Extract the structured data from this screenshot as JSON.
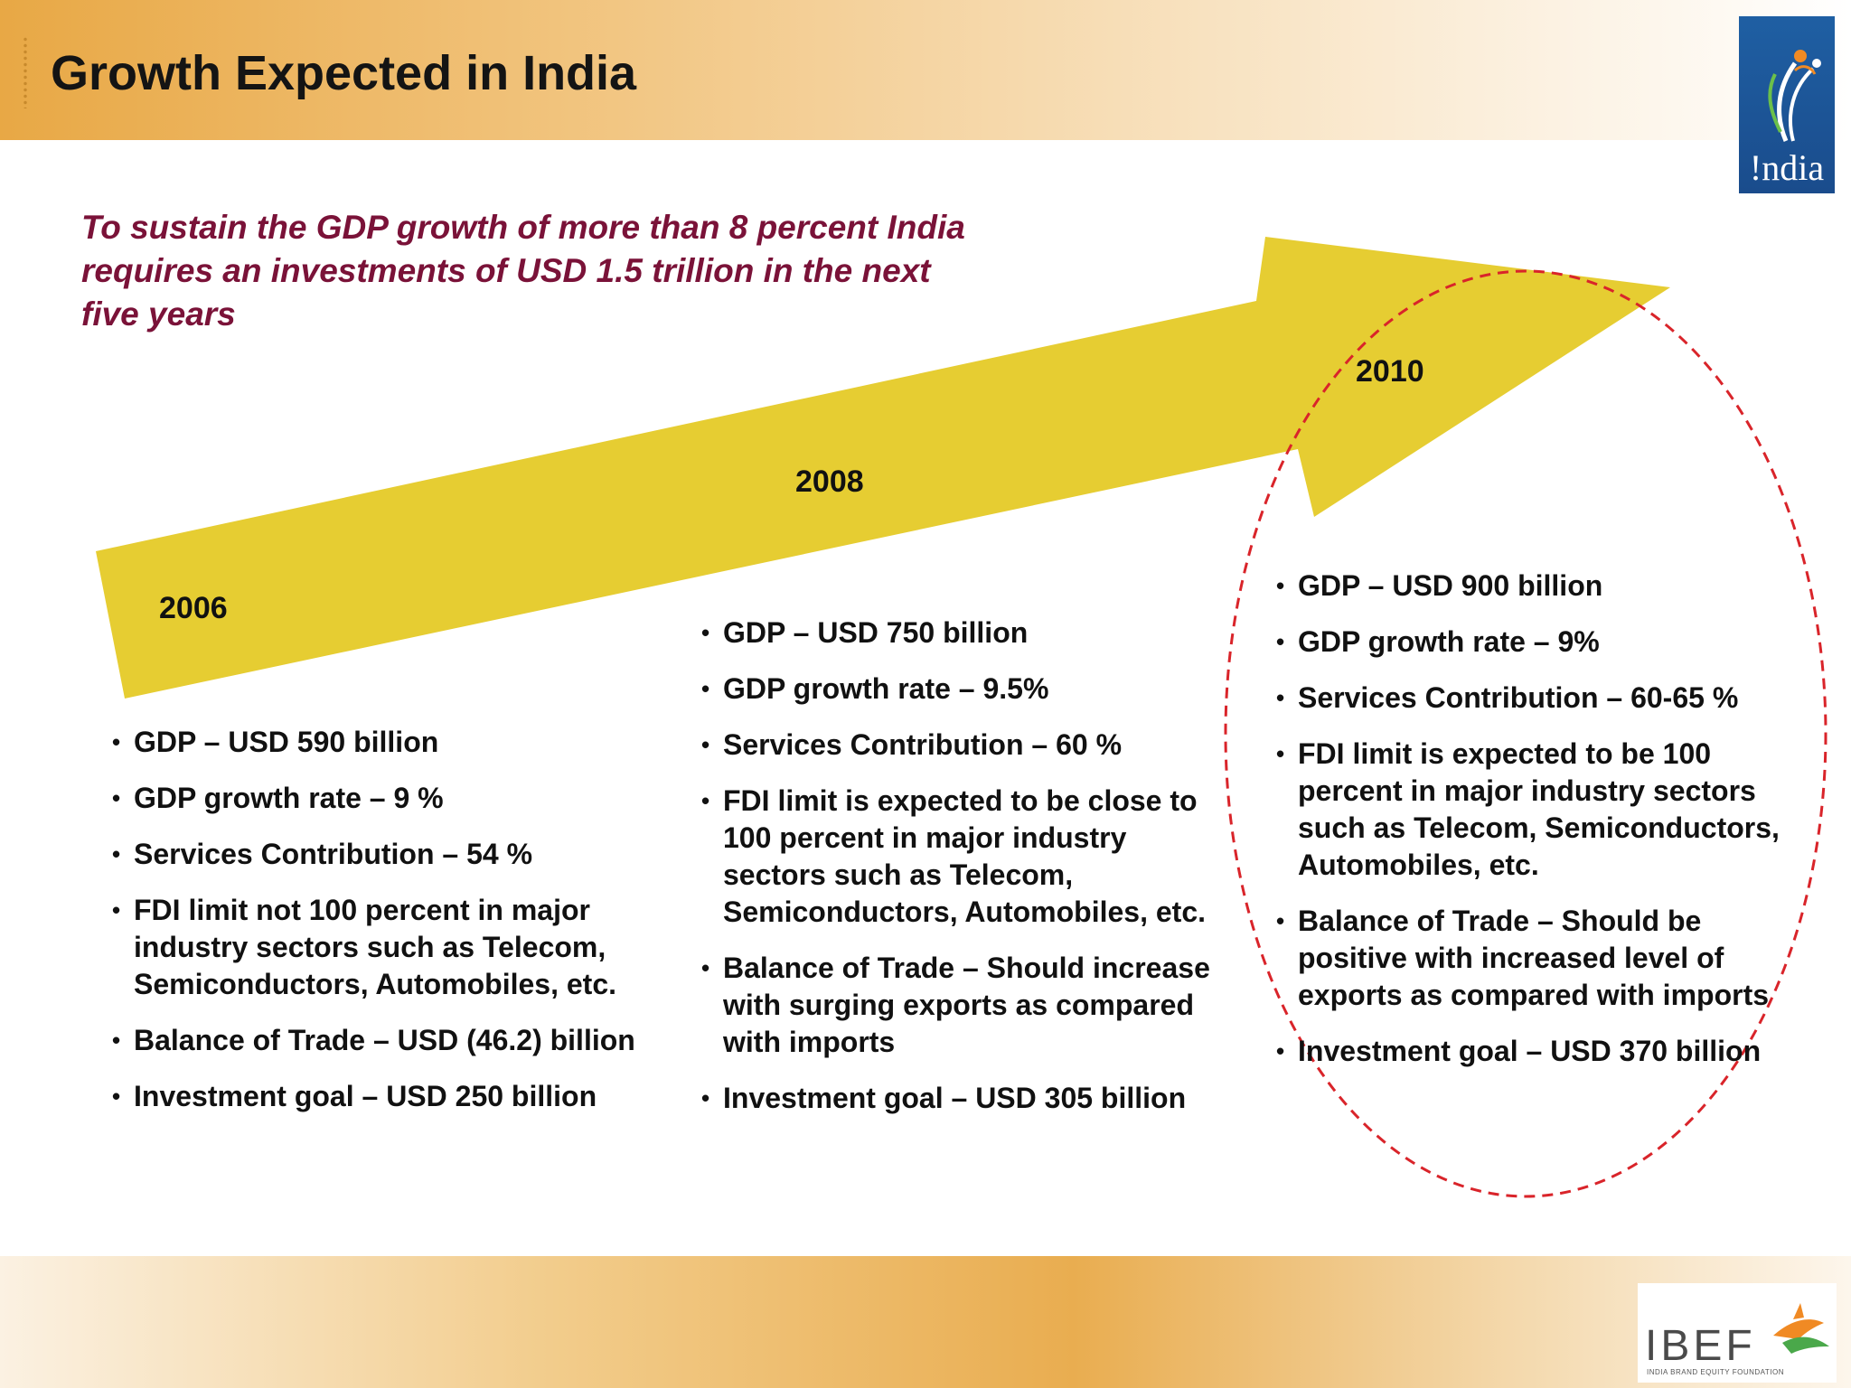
{
  "header": {
    "title": "Growth Expected in India"
  },
  "india_logo": {
    "text": "!ndia"
  },
  "subtitle": "To sustain the GDP growth of more than 8 percent India requires an investments of USD 1.5 trillion in the next five years",
  "columns": [
    {
      "year": "2006",
      "items": [
        "GDP – USD 590 billion",
        "GDP growth rate – 9 %",
        "Services Contribution – 54 %",
        "FDI limit not 100 percent in major industry sectors such as Telecom, Semiconductors, Automobiles, etc.",
        "Balance of Trade – USD (46.2) billion",
        "Investment goal – USD 250 billion"
      ]
    },
    {
      "year": "2008",
      "items": [
        "GDP – USD 750 billion",
        "GDP growth rate – 9.5%",
        "Services Contribution – 60 %",
        "FDI limit is expected to be close to 100 percent in major industry sectors such as Telecom, Semiconductors, Automobiles, etc.",
        "Balance of Trade – Should increase with surging exports as compared with imports",
        "Investment goal – USD 305 billion"
      ]
    },
    {
      "year": "2010",
      "items": [
        "GDP – USD 900 billion",
        "GDP growth rate – 9%",
        "Services Contribution – 60-65 %",
        "FDI limit is expected to be 100 percent in major industry sectors such as Telecom, Semiconductors, Automobiles, etc.",
        "Balance of Trade – Should be positive with increased level of exports as compared with imports",
        "Investment goal – USD 370 billion"
      ]
    }
  ],
  "footer": {
    "logo_text": "IBEF",
    "logo_subtext": "INDIA BRAND EQUITY FOUNDATION"
  },
  "colors": {
    "arrow": "#e6cd32",
    "subtitle": "#7a1238",
    "highlight": "#d9242a",
    "logo_blue": "#1f5fa3"
  }
}
